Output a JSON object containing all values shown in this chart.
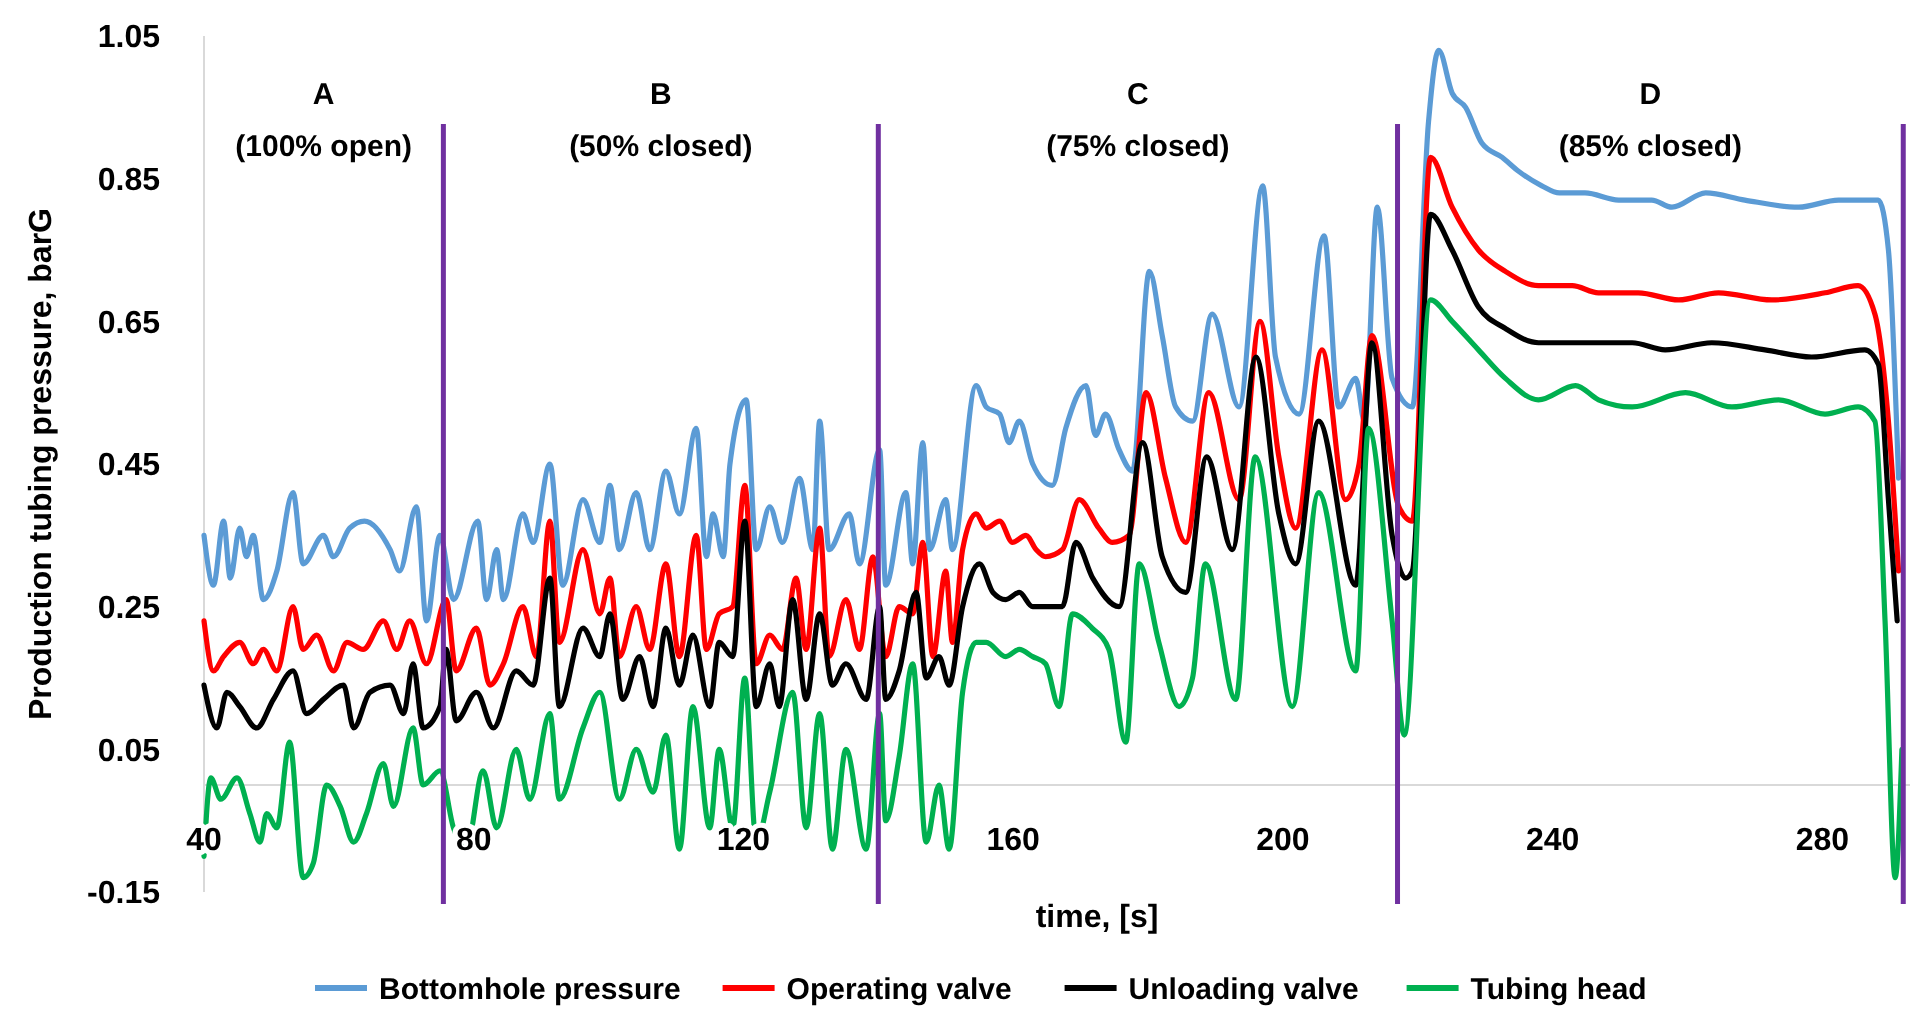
{
  "chart_data": {
    "type": "line",
    "xlabel": "time, [s]",
    "ylabel": "Production tubing pressure, barG",
    "xlim": [
      40,
      293
    ],
    "xticks": [
      40,
      80,
      120,
      160,
      200,
      240,
      280
    ],
    "ylim": [
      -0.15,
      1.05
    ],
    "yticks": [
      -0.15,
      0.05,
      0.25,
      0.45,
      0.65,
      0.85,
      1.05
    ],
    "grid": false,
    "legend": "bottom",
    "marker": "none",
    "line_style": "solid",
    "annotations": [
      "A\n(100% open)",
      "B\n(50% closed)",
      "C\n(75% closed)",
      "D\n(85% closed)"
    ],
    "ref_lines": [
      {
        "axis": "x",
        "value": 75.5,
        "color": "#7030a0"
      },
      {
        "axis": "x",
        "value": 140,
        "color": "#7030a0"
      },
      {
        "axis": "x",
        "value": 217,
        "color": "#7030a0"
      },
      {
        "axis": "x",
        "value": 292,
        "color": "#7030a0"
      }
    ],
    "series": [
      {
        "name": "Bottomhole pressure",
        "color": "#5b9bd5",
        "x": [
          40,
          41.4,
          42.9,
          43.9,
          45.3,
          46.3,
          47.3,
          48.8,
          50.8,
          53.2,
          54.7,
          57.7,
          59.2,
          61.6,
          63.8,
          67.6,
          69,
          71.5,
          73,
          75,
          77,
          80.6,
          81.9,
          83.4,
          84.4,
          87.3,
          88.8,
          91.3,
          93.2,
          96.2,
          98.7,
          100.2,
          101.6,
          104.1,
          106.1,
          108.5,
          110.5,
          113,
          114.5,
          115.5,
          117,
          118,
          120.4,
          121.9,
          123.9,
          125.8,
          128.3,
          130.3,
          131.3,
          132.7,
          135.7,
          137.2,
          140.2,
          141.1,
          144.1,
          145.1,
          146.6,
          147.6,
          150,
          151,
          154.5,
          156,
          158,
          159.4,
          160.9,
          162.9,
          165.8,
          167.8,
          170.8,
          172.2,
          173.7,
          175.7,
          177.7,
          180.2,
          182.1,
          184.1,
          186.6,
          189.5,
          193.5,
          197,
          198.9,
          202.4,
          206.1,
          208.3,
          210.8,
          212.1,
          214,
          216.2,
          219.2,
          221.6,
          223.1,
          225.1,
          227.1,
          229.5,
          232.5,
          235,
          238.4,
          241,
          244.8,
          249.8,
          254.7,
          257.7,
          262.7,
          268.5,
          276.5,
          282.4,
          288.3,
          289.8,
          291.3
        ],
        "values": [
          0.35,
          0.28,
          0.37,
          0.29,
          0.36,
          0.32,
          0.35,
          0.26,
          0.3,
          0.41,
          0.31,
          0.35,
          0.32,
          0.36,
          0.37,
          0.33,
          0.3,
          0.39,
          0.23,
          0.35,
          0.26,
          0.37,
          0.26,
          0.33,
          0.26,
          0.38,
          0.34,
          0.45,
          0.28,
          0.4,
          0.34,
          0.42,
          0.33,
          0.41,
          0.33,
          0.44,
          0.38,
          0.5,
          0.32,
          0.38,
          0.32,
          0.45,
          0.54,
          0.33,
          0.39,
          0.34,
          0.43,
          0.33,
          0.51,
          0.33,
          0.38,
          0.31,
          0.47,
          0.28,
          0.41,
          0.31,
          0.48,
          0.33,
          0.4,
          0.33,
          0.56,
          0.53,
          0.52,
          0.48,
          0.51,
          0.45,
          0.42,
          0.5,
          0.56,
          0.49,
          0.52,
          0.47,
          0.44,
          0.72,
          0.63,
          0.53,
          0.51,
          0.66,
          0.53,
          0.84,
          0.6,
          0.52,
          0.77,
          0.53,
          0.57,
          0.51,
          0.81,
          0.57,
          0.53,
          0.93,
          1.03,
          0.97,
          0.95,
          0.9,
          0.88,
          0.86,
          0.84,
          0.83,
          0.83,
          0.82,
          0.82,
          0.81,
          0.83,
          0.82,
          0.81,
          0.82,
          0.82,
          0.75,
          0.43
        ]
      },
      {
        "name": "Operating valve",
        "color": "#ff0000",
        "x": [
          40,
          41.4,
          42.9,
          45.3,
          47.3,
          48.8,
          50.8,
          53.2,
          54.7,
          56.7,
          59.2,
          61.2,
          63.6,
          66.6,
          68.6,
          70.5,
          73,
          75.9,
          77.4,
          80.4,
          82.4,
          84.4,
          87.3,
          89.3,
          91.3,
          92.7,
          96.2,
          98.7,
          100.2,
          101.6,
          104.1,
          106.1,
          108.5,
          110.5,
          113,
          114.5,
          116.4,
          118.4,
          120.2,
          121.9,
          123.9,
          125.8,
          127.8,
          129.3,
          131.3,
          132.7,
          135.2,
          137.2,
          139.2,
          141.1,
          143.1,
          145.1,
          146.6,
          148.1,
          150,
          151,
          152.5,
          154.5,
          156,
          158,
          159.9,
          161.9,
          163.4,
          164.8,
          167.3,
          169.8,
          172.7,
          174.7,
          177.2,
          179.7,
          182.6,
          185.6,
          189,
          193.5,
          196.6,
          199.4,
          201.9,
          205.8,
          209.3,
          211.3,
          213.2,
          217.2,
          219.2,
          221.9,
          225.1,
          229,
          233,
          237.9,
          242.9,
          246.8,
          252.7,
          258.7,
          264.6,
          272.5,
          280.4,
          285.3,
          287.8,
          289.8,
          291.3
        ],
        "values": [
          0.23,
          0.16,
          0.18,
          0.2,
          0.17,
          0.19,
          0.16,
          0.25,
          0.19,
          0.21,
          0.16,
          0.2,
          0.19,
          0.23,
          0.19,
          0.23,
          0.17,
          0.26,
          0.16,
          0.22,
          0.14,
          0.17,
          0.25,
          0.18,
          0.37,
          0.2,
          0.33,
          0.24,
          0.29,
          0.18,
          0.25,
          0.19,
          0.31,
          0.18,
          0.35,
          0.19,
          0.24,
          0.25,
          0.42,
          0.17,
          0.21,
          0.19,
          0.29,
          0.19,
          0.36,
          0.18,
          0.26,
          0.19,
          0.32,
          0.18,
          0.25,
          0.24,
          0.34,
          0.18,
          0.3,
          0.2,
          0.33,
          0.38,
          0.36,
          0.37,
          0.34,
          0.35,
          0.33,
          0.32,
          0.33,
          0.4,
          0.36,
          0.34,
          0.35,
          0.55,
          0.43,
          0.34,
          0.55,
          0.4,
          0.65,
          0.46,
          0.36,
          0.61,
          0.4,
          0.45,
          0.63,
          0.39,
          0.37,
          0.88,
          0.81,
          0.75,
          0.72,
          0.7,
          0.7,
          0.69,
          0.69,
          0.68,
          0.69,
          0.68,
          0.69,
          0.7,
          0.66,
          0.51,
          0.3
        ]
      },
      {
        "name": "Unloading valve",
        "color": "#000000",
        "x": [
          40,
          41.9,
          43.4,
          45.3,
          47.8,
          50.3,
          53.2,
          55.2,
          57.7,
          60.7,
          62.2,
          64.6,
          67.6,
          69.6,
          71,
          72.5,
          75,
          75.9,
          77.4,
          80.4,
          82.9,
          86.3,
          88.8,
          91.3,
          92.7,
          96.2,
          98.7,
          100.2,
          102.1,
          104.6,
          106.6,
          108.5,
          110.5,
          112.5,
          115,
          116.4,
          118.4,
          120.2,
          121.9,
          123.9,
          125.3,
          127.3,
          129.3,
          131.3,
          133.2,
          135.2,
          138.2,
          140.2,
          141.1,
          143.1,
          145.6,
          147.1,
          149,
          150.5,
          152.5,
          155,
          157,
          158.9,
          160.9,
          162.9,
          167.3,
          169.3,
          171.8,
          175.7,
          179.2,
          182.1,
          185.6,
          188.7,
          192.5,
          196,
          199.4,
          201.9,
          205.3,
          210.8,
          213.2,
          216.2,
          218.2,
          219.2,
          221.9,
          225.1,
          229,
          233,
          237.9,
          244.8,
          251.8,
          256.7,
          263.6,
          271.5,
          278.4,
          286.3,
          288.3,
          289.8,
          291.1
        ],
        "values": [
          0.14,
          0.08,
          0.13,
          0.11,
          0.08,
          0.12,
          0.16,
          0.1,
          0.12,
          0.14,
          0.08,
          0.13,
          0.14,
          0.1,
          0.17,
          0.08,
          0.11,
          0.19,
          0.09,
          0.13,
          0.08,
          0.16,
          0.14,
          0.29,
          0.11,
          0.22,
          0.18,
          0.24,
          0.12,
          0.18,
          0.11,
          0.22,
          0.14,
          0.21,
          0.11,
          0.2,
          0.18,
          0.37,
          0.11,
          0.17,
          0.11,
          0.26,
          0.12,
          0.24,
          0.14,
          0.17,
          0.12,
          0.25,
          0.12,
          0.16,
          0.27,
          0.15,
          0.18,
          0.14,
          0.25,
          0.31,
          0.27,
          0.26,
          0.27,
          0.25,
          0.25,
          0.34,
          0.29,
          0.25,
          0.48,
          0.32,
          0.27,
          0.46,
          0.33,
          0.6,
          0.38,
          0.31,
          0.51,
          0.28,
          0.62,
          0.35,
          0.29,
          0.3,
          0.8,
          0.75,
          0.67,
          0.64,
          0.62,
          0.62,
          0.62,
          0.61,
          0.62,
          0.61,
          0.6,
          0.61,
          0.59,
          0.4,
          0.23
        ]
      },
      {
        "name": "Tubing head",
        "color": "#00b050",
        "x": [
          40,
          41,
          42.5,
          44.9,
          46.8,
          48.3,
          49.3,
          50.8,
          52.7,
          54.7,
          56.2,
          58.2,
          60.2,
          62.2,
          64.1,
          66.6,
          68.1,
          71,
          72.5,
          75,
          77,
          78.9,
          81.4,
          83.4,
          86.3,
          88.3,
          91.3,
          92.7,
          96.2,
          98.7,
          101.6,
          104.1,
          106.6,
          108.5,
          110.5,
          112.5,
          115,
          116.4,
          118.4,
          120.2,
          121.9,
          123.9,
          127.3,
          129.3,
          131.3,
          133.2,
          135.2,
          138.2,
          140.2,
          141.1,
          143.1,
          145.1,
          147.1,
          149,
          150.5,
          152.5,
          154.5,
          156,
          158.9,
          160.9,
          162.9,
          164.8,
          166.8,
          168.8,
          171.7,
          174.2,
          176.7,
          178.7,
          181.6,
          184.6,
          186.6,
          188.5,
          193,
          195.9,
          201.4,
          205.3,
          210.8,
          212.7,
          216.2,
          218,
          221.9,
          225.1,
          229,
          233,
          237.9,
          243.4,
          246.8,
          251.8,
          259.7,
          266.6,
          273.5,
          280.4,
          285.3,
          287.8,
          289.3,
          290.8,
          291.8
        ],
        "values": [
          -0.1,
          0.01,
          -0.02,
          0.01,
          -0.04,
          -0.08,
          -0.04,
          -0.06,
          0.06,
          -0.13,
          -0.11,
          0,
          -0.03,
          -0.08,
          -0.04,
          0.03,
          -0.03,
          0.08,
          0,
          0.02,
          -0.06,
          -0.09,
          0.02,
          -0.06,
          0.05,
          -0.02,
          0.1,
          -0.02,
          0.08,
          0.13,
          -0.02,
          0.05,
          -0.01,
          0.07,
          -0.09,
          0.11,
          -0.06,
          0.05,
          -0.06,
          0.15,
          -0.08,
          -0.01,
          0.13,
          -0.06,
          0.1,
          -0.09,
          0.05,
          -0.09,
          0.1,
          -0.05,
          0.04,
          0.17,
          -0.08,
          0,
          -0.09,
          0.13,
          0.2,
          0.2,
          0.18,
          0.19,
          0.18,
          0.17,
          0.11,
          0.24,
          0.22,
          0.19,
          0.06,
          0.31,
          0.2,
          0.11,
          0.15,
          0.31,
          0.12,
          0.46,
          0.11,
          0.41,
          0.16,
          0.5,
          0.23,
          0.07,
          0.68,
          0.65,
          0.61,
          0.57,
          0.54,
          0.56,
          0.54,
          0.53,
          0.55,
          0.53,
          0.54,
          0.52,
          0.53,
          0.51,
          0.23,
          -0.13,
          0.05
        ]
      }
    ]
  }
}
